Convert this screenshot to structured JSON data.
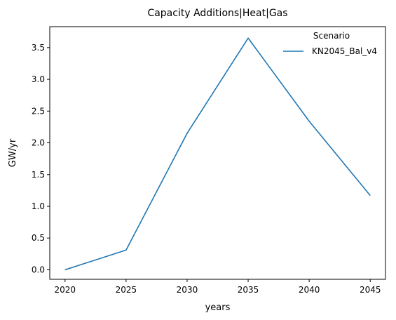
{
  "chart_data": {
    "type": "line",
    "title": "Capacity Additions|Heat|Gas",
    "xlabel": "years",
    "ylabel": "GW/yr",
    "x": [
      2020,
      2025,
      2030,
      2035,
      2040,
      2045
    ],
    "xticks": [
      "2020",
      "2025",
      "2030",
      "2035",
      "2040",
      "2045"
    ],
    "yticks": [
      "0.0",
      "0.5",
      "1.0",
      "1.5",
      "2.0",
      "2.5",
      "3.0",
      "3.5"
    ],
    "xlim": [
      2018.75,
      2046.25
    ],
    "ylim": [
      -0.15,
      3.83
    ],
    "grid": false,
    "legend": {
      "title": "Scenario",
      "placement": "top-right"
    },
    "series": [
      {
        "name": "KN2045_Bal_v4",
        "color": "#1f77b4",
        "values": [
          0.0,
          0.31,
          2.15,
          3.65,
          2.34,
          1.17
        ]
      }
    ]
  }
}
